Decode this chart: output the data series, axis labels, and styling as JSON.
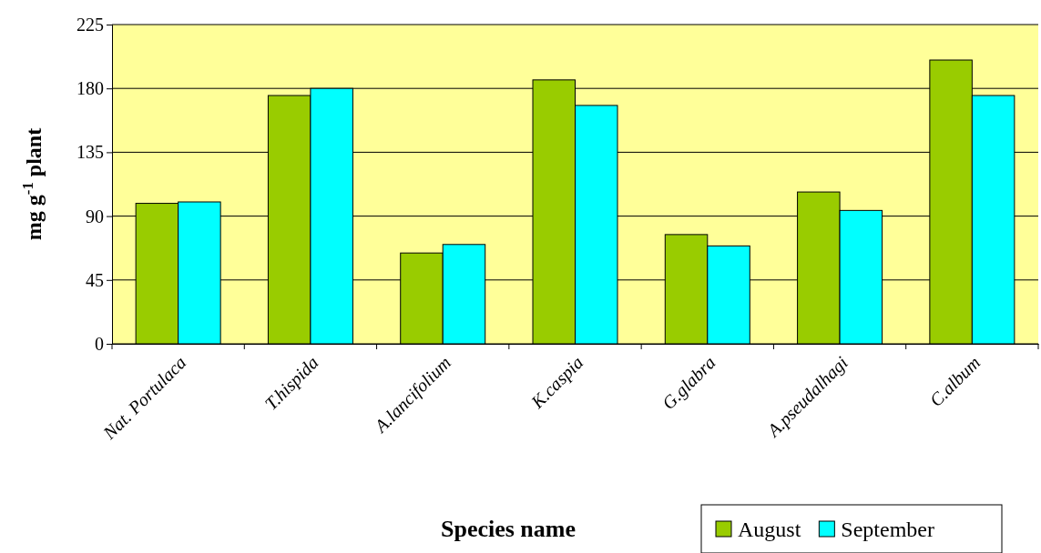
{
  "chart_data": {
    "type": "bar",
    "xlabel": "Species name",
    "ylabel": "mg g$^{-1}$ plant",
    "categories": [
      "Nat. Portulaca",
      "T.hispida",
      "A.lancifolium",
      "K.caspia",
      "G.glabra",
      "A.pseudalhagi",
      "C.album"
    ],
    "series": [
      {
        "name": "August",
        "color": "#99cc00",
        "values": [
          99,
          175,
          64,
          186,
          77,
          107,
          200
        ]
      },
      {
        "name": "September",
        "color": "#00ffff",
        "values": [
          100,
          180,
          70,
          168,
          69,
          94,
          175
        ]
      }
    ],
    "ylim": [
      0,
      225
    ],
    "yticks": [
      0,
      45,
      90,
      135,
      180,
      225
    ],
    "grid": "y",
    "legend": "bottom right"
  }
}
